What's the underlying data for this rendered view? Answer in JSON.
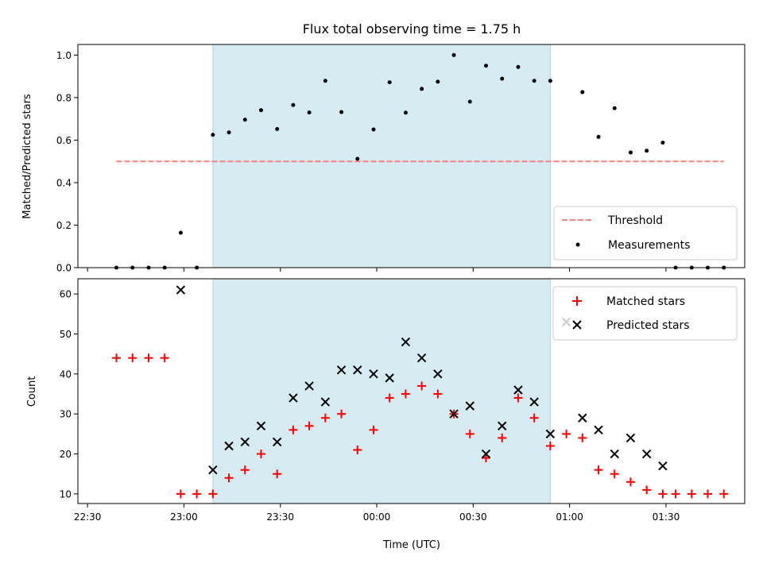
{
  "chart_data": {
    "type": "scatter",
    "title": "Flux total observing time = 1.75 h",
    "xlabel": "Time (UTC)",
    "x_tick_labels": [
      "22:30",
      "23:00",
      "23:30",
      "00:00",
      "00:30",
      "01:00",
      "01:30"
    ],
    "x_ticks_min": [
      -30,
      0,
      30,
      60,
      90,
      120,
      150
    ],
    "xlim_min": [
      -33,
      174.5
    ],
    "observing_window_min": [
      9,
      114
    ],
    "window_color": "#add8e6",
    "top": {
      "ylabel": "Matched/Predicted stars",
      "ylim": [
        0,
        1.05
      ],
      "y_ticks": [
        0.0,
        0.2,
        0.4,
        0.6,
        0.8,
        1.0
      ],
      "y_tick_labels": [
        "0.0",
        "0.2",
        "0.4",
        "0.6",
        "0.8",
        "1.0"
      ],
      "threshold": {
        "name": "Threshold",
        "y": 0.5,
        "x_range_min": [
          -21,
          168
        ],
        "color": "#ff7f7f"
      },
      "measurements": {
        "name": "Measurements",
        "color": "#000000",
        "x_min": [
          -21,
          -16,
          -11,
          -6,
          -1,
          4,
          9,
          14,
          19,
          24,
          29,
          34,
          39,
          44,
          49,
          54,
          59,
          64,
          69,
          74,
          79,
          84,
          89,
          94,
          99,
          104,
          109,
          114,
          124,
          129,
          134,
          139,
          144,
          149,
          153,
          158,
          163,
          168
        ],
        "y": [
          0,
          0,
          0,
          0,
          0.164,
          0,
          0.625,
          0.636,
          0.696,
          0.741,
          0.652,
          0.765,
          0.73,
          0.879,
          0.732,
          0.512,
          0.65,
          0.872,
          0.729,
          0.841,
          0.875,
          1.0,
          0.781,
          0.95,
          0.889,
          0.944,
          0.879,
          0.879,
          0.826,
          0.615,
          0.75,
          0.542,
          0.55,
          0.588,
          0,
          0,
          0,
          0
        ]
      }
    },
    "bottom": {
      "ylabel": "Count",
      "ylim": [
        7.6,
        63.8
      ],
      "y_ticks": [
        10,
        20,
        30,
        40,
        50,
        60
      ],
      "y_tick_labels": [
        "10",
        "20",
        "30",
        "40",
        "50",
        "60"
      ],
      "series": [
        {
          "name": "Matched stars",
          "marker": "plus",
          "color": "#ff0000",
          "x_min": [
            -21,
            -16,
            -11,
            -6,
            -1,
            4,
            9,
            14,
            19,
            24,
            29,
            34,
            39,
            44,
            49,
            54,
            59,
            64,
            69,
            74,
            79,
            84,
            89,
            94,
            99,
            104,
            109,
            114,
            119,
            124,
            129,
            134,
            139,
            144,
            149,
            153,
            158,
            163,
            168
          ],
          "values": [
            44,
            44,
            44,
            44,
            10,
            10,
            10,
            14,
            16,
            20,
            15,
            26,
            27,
            29,
            30,
            21,
            26,
            34,
            35,
            37,
            35,
            30,
            25,
            19,
            24,
            34,
            29,
            22,
            25,
            24,
            16,
            15,
            13,
            11,
            10,
            10,
            10,
            10,
            10
          ]
        },
        {
          "name": "Predicted stars",
          "marker": "x",
          "color": "#000000",
          "x_min": [
            -1,
            9,
            14,
            19,
            24,
            29,
            34,
            39,
            44,
            49,
            54,
            59,
            64,
            69,
            74,
            79,
            84,
            89,
            94,
            99,
            104,
            109,
            114,
            119,
            124,
            129,
            134,
            139,
            144,
            149
          ],
          "values": [
            61,
            16,
            22,
            23,
            27,
            23,
            34,
            37,
            33,
            41,
            41,
            40,
            39,
            48,
            44,
            40,
            30,
            32,
            20,
            27,
            36,
            33,
            25,
            53,
            29,
            26,
            20,
            24,
            20,
            17
          ]
        }
      ]
    }
  }
}
